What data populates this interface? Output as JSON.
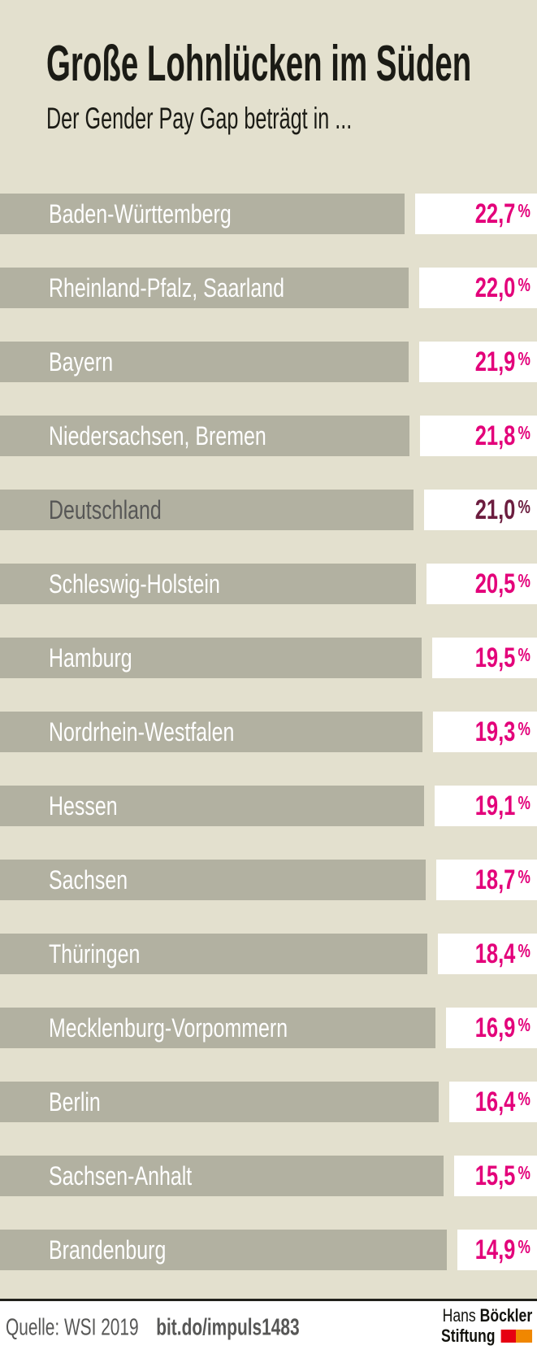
{
  "header": {
    "title": "Große Lohnlücken im Süden",
    "subtitle": "Der Gender Pay Gap beträgt in ..."
  },
  "chart_data": {
    "type": "bar",
    "orientation": "horizontal",
    "title": "Große Lohnlücken im Süden",
    "subtitle": "Der Gender Pay Gap beträgt in ...",
    "unit": "%",
    "value_scale": [
      0,
      100
    ],
    "encoding_note": "each row is a 100%-wide stacked bar: grey segment = 100 minus gap, white segment width = gender pay gap value",
    "categories": [
      "Baden-Württemberg",
      "Rheinland-Pfalz, Saarland",
      "Bayern",
      "Niedersachsen, Bremen",
      "Deutschland",
      "Schleswig-Holstein",
      "Hamburg",
      "Nordrhein-Westfalen",
      "Hessen",
      "Sachsen",
      "Thüringen",
      "Mecklenburg-Vorpommern",
      "Berlin",
      "Sachsen-Anhalt",
      "Brandenburg"
    ],
    "values": [
      22.7,
      22.0,
      21.9,
      21.8,
      21.0,
      20.5,
      19.5,
      19.3,
      19.1,
      18.7,
      18.4,
      16.9,
      16.4,
      15.5,
      14.9
    ],
    "values_display": [
      "22,7",
      "22,0",
      "21,9",
      "21,8",
      "21,0",
      "20,5",
      "19,5",
      "19,3",
      "19,1",
      "18,7",
      "18,4",
      "16,9",
      "16,4",
      "15,5",
      "14,9"
    ],
    "highlight_index": 4,
    "colors": {
      "background": "#e3e0ce",
      "bar": "#b2b1a1",
      "value_box": "#ffffff",
      "value_text": "#e3007a",
      "bar_label": "#ffffff",
      "highlight_bar_label": "#575756",
      "highlight_value_text": "#6c1d3f"
    }
  },
  "footer": {
    "source": "Quelle: WSI 2019",
    "link": "bit.do/impuls1483",
    "logo": {
      "name_regular": "Hans",
      "name_bold": "Böckler",
      "line2": "Stiftung",
      "mark_red": "#e60012",
      "mark_orange": "#f08700"
    }
  }
}
